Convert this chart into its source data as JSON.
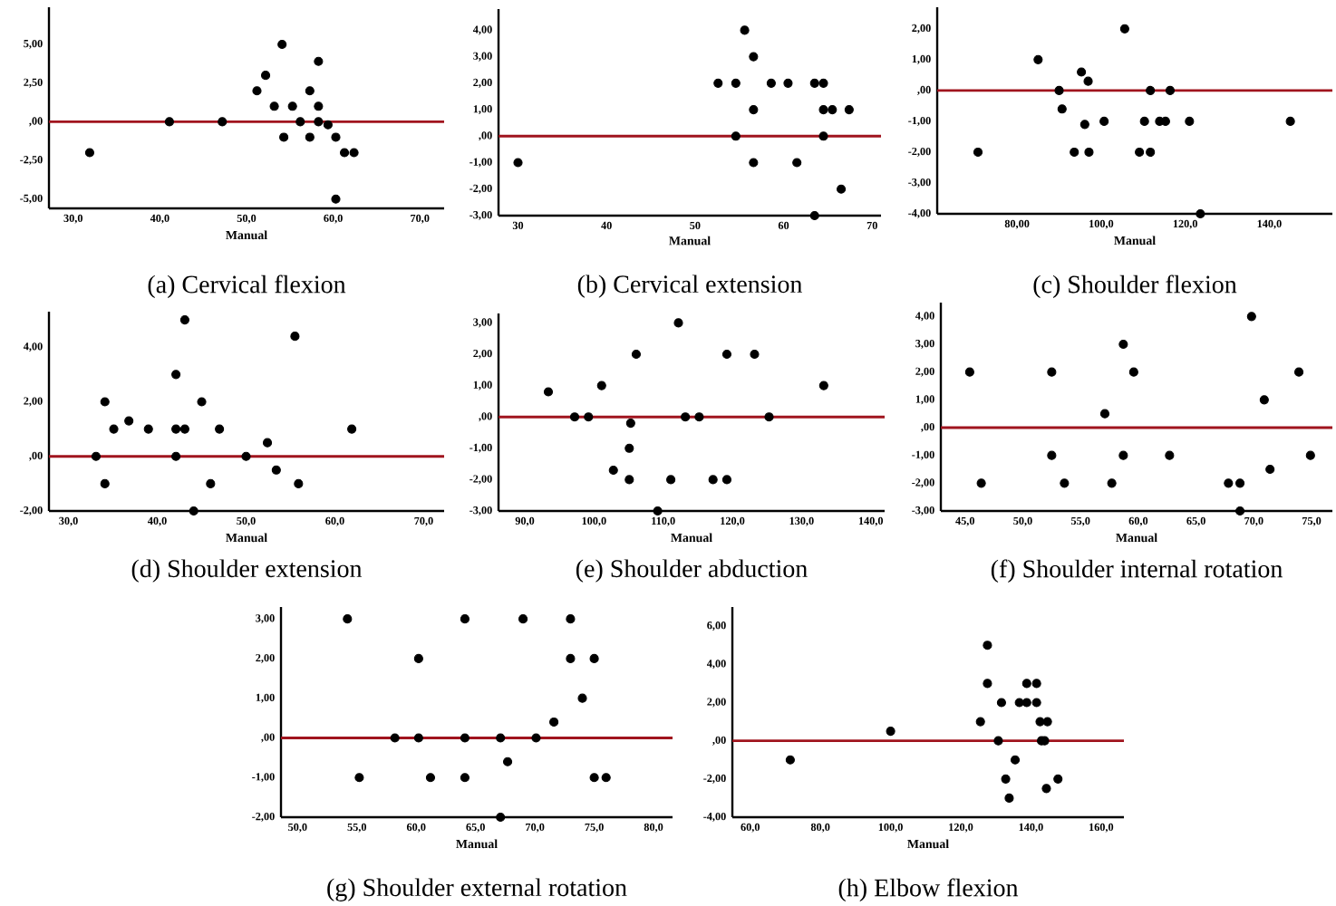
{
  "chart_data": [
    {
      "type": "scatter",
      "title": "(a) Cervical flexion",
      "xlabel": "Manual",
      "marker": "circle",
      "color": "#000000",
      "x": [
        31.9,
        41.1,
        47.2,
        51.2,
        52.2,
        53.2,
        54.1,
        54.3,
        55.3,
        56.2,
        57.3,
        57.3,
        58.3,
        58.3,
        58.3,
        59.4,
        60.3,
        60.3,
        61.3,
        62.4
      ],
      "values": [
        -2.0,
        0,
        0,
        2.0,
        3.0,
        1.0,
        5.0,
        -1.0,
        1.0,
        0,
        2.0,
        -1.0,
        3.9,
        1.0,
        0,
        -0.2,
        -1.0,
        -5.0,
        -2.0,
        -2.0
      ],
      "xlim": [
        27.2,
        72.8
      ],
      "ylim": [
        -5.6,
        7.4
      ],
      "xticks": [
        {
          "value": 30,
          "label": "30,0"
        },
        {
          "value": 40,
          "label": "40,0"
        },
        {
          "value": 50,
          "label": "50,0"
        },
        {
          "value": 60,
          "label": "60,0"
        },
        {
          "value": 70,
          "label": "70,0"
        }
      ],
      "yticks": [
        {
          "value": 5,
          "label": "5,00"
        },
        {
          "value": 2.5,
          "label": "2,50"
        },
        {
          "value": 0,
          "label": ",00"
        },
        {
          "value": -2.5,
          "label": "-2,50"
        },
        {
          "value": -5,
          "label": "-5,00"
        }
      ],
      "ref_lines": [
        {
          "axis": "y",
          "value": 0,
          "color": "#a0141e"
        }
      ]
    },
    {
      "type": "scatter",
      "title": "(b) Cervical extension",
      "xlabel": "Manual",
      "marker": "circle",
      "color": "#000000",
      "x": [
        30,
        52.6,
        54.6,
        54.6,
        55.6,
        56.6,
        56.6,
        56.6,
        58.6,
        60.5,
        61.5,
        63.5,
        63.5,
        64.5,
        64.5,
        64.5,
        65.5,
        66.5,
        67.4
      ],
      "values": [
        -1,
        2,
        2,
        0,
        4,
        3,
        1,
        -1,
        2,
        2,
        -1,
        2,
        -3,
        2,
        1,
        0,
        1,
        -2,
        1
      ],
      "xlim": [
        27.8,
        71
      ],
      "ylim": [
        -3,
        4.8
      ],
      "xticks": [
        30,
        40,
        50,
        60,
        70
      ],
      "yticks": [
        {
          "value": 4,
          "label": "4,00"
        },
        {
          "value": 3,
          "label": "3,00"
        },
        {
          "value": 2,
          "label": "2,00"
        },
        {
          "value": 1,
          "label": "1,00"
        },
        {
          "value": 0,
          "label": ",00"
        },
        {
          "value": -1,
          "label": "-1,00"
        },
        {
          "value": -2,
          "label": "-2,00"
        },
        {
          "value": -3,
          "label": "-3,00"
        }
      ],
      "ref_lines": [
        {
          "axis": "y",
          "value": 0,
          "color": "#a0141e"
        }
      ]
    },
    {
      "type": "scatter",
      "title": "(c) Shoulder flexion",
      "xlabel": "Manual",
      "marker": "circle",
      "color": "#000000",
      "x": [
        70.7,
        85.0,
        90.0,
        90.7,
        93.6,
        95.3,
        96.1,
        96.9,
        97.1,
        100.7,
        105.6,
        109.1,
        110.3,
        111.7,
        111.7,
        113.9,
        115.3,
        116.4,
        121.0,
        123.6,
        145
      ],
      "values": [
        -2,
        1,
        0,
        -0.6,
        -2,
        0.6,
        -1.1,
        0.3,
        -2,
        -1,
        2,
        -2,
        -1,
        0,
        -2,
        -1,
        -1,
        0,
        -1,
        -4,
        -1
      ],
      "xlim": [
        61,
        155
      ],
      "ylim": [
        -4,
        2.7
      ],
      "xticks": [
        {
          "value": 80,
          "label": "80,00"
        },
        {
          "value": 100,
          "label": "100,0"
        },
        {
          "value": 120,
          "label": "120,0"
        },
        {
          "value": 140,
          "label": "140,0"
        }
      ],
      "yticks": [
        {
          "value": 2,
          "label": "2,00"
        },
        {
          "value": 1,
          "label": "1,00"
        },
        {
          "value": 0,
          "label": ",00"
        },
        {
          "value": -1,
          "label": "-1,00"
        },
        {
          "value": -2,
          "label": "-2,00"
        },
        {
          "value": -3,
          "label": "-3,00"
        },
        {
          "value": -4,
          "label": "-4,00"
        }
      ],
      "ref_lines": [
        {
          "axis": "y",
          "value": 0,
          "color": "#a0141e"
        }
      ]
    },
    {
      "type": "scatter",
      "title": "(d) Shoulder extension",
      "xlabel": "Manual",
      "marker": "circle",
      "color": "#000000",
      "x": [
        33.1,
        34.1,
        34.1,
        35.1,
        36.8,
        39.0,
        42.1,
        42.1,
        42.1,
        43.1,
        43.1,
        44.1,
        45.0,
        46.0,
        47.0,
        50.0,
        52.4,
        53.4,
        55.5,
        55.9,
        61.9
      ],
      "values": [
        0,
        2,
        -1,
        1,
        1.3,
        1,
        3,
        1,
        0,
        5,
        1,
        -2,
        2,
        -1,
        1,
        0,
        0.5,
        -0.5,
        4.4,
        -1,
        1
      ],
      "xlim": [
        27.8,
        72.3
      ],
      "ylim": [
        -2,
        5.3
      ],
      "xticks": [
        {
          "value": 30,
          "label": "30,0"
        },
        {
          "value": 40,
          "label": "40,0"
        },
        {
          "value": 50,
          "label": "50,0"
        },
        {
          "value": 60,
          "label": "60,0"
        },
        {
          "value": 70,
          "label": "70,0"
        }
      ],
      "yticks": [
        {
          "value": 4,
          "label": "4,00"
        },
        {
          "value": 2,
          "label": "2,00"
        },
        {
          "value": 0,
          "label": ",00"
        },
        {
          "value": -2,
          "label": "-2,00"
        }
      ],
      "ref_lines": [
        {
          "axis": "y",
          "value": 0,
          "color": "#a0141e"
        }
      ]
    },
    {
      "type": "scatter",
      "title": "(e) Shoulder abduction",
      "xlabel": "Manual",
      "marker": "circle",
      "color": "#000000",
      "x": [
        93.4,
        97.2,
        99.2,
        101.1,
        102.8,
        105.3,
        105.1,
        105.1,
        106.1,
        109.2,
        111.1,
        112.2,
        113.2,
        115.2,
        117.2,
        119.2,
        119.2,
        123.2,
        125.3,
        133.2
      ],
      "values": [
        0.8,
        0,
        0,
        1,
        -1.7,
        -0.2,
        -1,
        -2,
        2,
        -3,
        -2,
        3,
        0,
        0,
        -2,
        2,
        -2,
        2,
        0,
        1
      ],
      "xlim": [
        86.2,
        142
      ],
      "ylim": [
        -3,
        3.3
      ],
      "xticks": [
        {
          "value": 90,
          "label": "90,0"
        },
        {
          "value": 100,
          "label": "100,0"
        },
        {
          "value": 110,
          "label": "110,0"
        },
        {
          "value": 120,
          "label": "120,0"
        },
        {
          "value": 130,
          "label": "130,0"
        },
        {
          "value": 140,
          "label": "140,0"
        }
      ],
      "yticks": [
        {
          "value": 3,
          "label": "3,00"
        },
        {
          "value": 2,
          "label": "2,00"
        },
        {
          "value": 1,
          "label": "1,00"
        },
        {
          "value": 0,
          "label": ",00"
        },
        {
          "value": -1,
          "label": "-1,00"
        },
        {
          "value": -2,
          "label": "-2,00"
        },
        {
          "value": -3,
          "label": "-3,00"
        }
      ],
      "ref_lines": [
        {
          "axis": "y",
          "value": 0,
          "color": "#a0141e"
        }
      ]
    },
    {
      "type": "scatter",
      "title": "(f) Shoulder internal rotation",
      "xlabel": "Manual",
      "marker": "circle",
      "color": "#000000",
      "x": [
        45.4,
        46.4,
        52.5,
        52.5,
        53.6,
        57.1,
        57.7,
        58.7,
        58.7,
        59.6,
        62.7,
        67.8,
        68.8,
        68.8,
        69.8,
        70.9,
        71.4,
        73.9,
        74.9
      ],
      "values": [
        2,
        -2,
        2,
        -1,
        -2,
        0.5,
        -2,
        3,
        -1,
        2,
        -1,
        -2,
        -2,
        -3,
        4,
        1,
        -1.5,
        2,
        -1
      ],
      "xlim": [
        42.9,
        76.8
      ],
      "ylim": [
        -3,
        4.5
      ],
      "xticks": [
        {
          "value": 45,
          "label": "45,0"
        },
        {
          "value": 50,
          "label": "50,0"
        },
        {
          "value": 55,
          "label": "55,0"
        },
        {
          "value": 60,
          "label": "60,0"
        },
        {
          "value": 65,
          "label": "65,0"
        },
        {
          "value": 70,
          "label": "70,0"
        },
        {
          "value": 75,
          "label": "75,0"
        }
      ],
      "yticks": [
        {
          "value": 4,
          "label": "4,00"
        },
        {
          "value": 3,
          "label": "3,00"
        },
        {
          "value": 2,
          "label": "2,00"
        },
        {
          "value": 1,
          "label": "1,00"
        },
        {
          "value": 0,
          "label": ",00"
        },
        {
          "value": -1,
          "label": "-1,00"
        },
        {
          "value": -2,
          "label": "-2,00"
        },
        {
          "value": -3,
          "label": "-3,00"
        }
      ],
      "ref_lines": [
        {
          "axis": "y",
          "value": 0,
          "color": "#a0141e"
        }
      ]
    },
    {
      "type": "scatter",
      "title": "(g) Shoulder external rotation",
      "xlabel": "Manual",
      "marker": "circle",
      "color": "#000000",
      "x": [
        54.2,
        55.2,
        58.2,
        60.2,
        60.2,
        61.2,
        64.1,
        64.1,
        64.1,
        67.1,
        67.1,
        67.7,
        69.0,
        70.1,
        71.6,
        73.0,
        73.0,
        74.0,
        75.0,
        75.0,
        76.0
      ],
      "values": [
        3,
        -1,
        0,
        2,
        0,
        -1,
        3,
        0,
        -1,
        0,
        -2,
        -0.6,
        3,
        0,
        0.4,
        3,
        2,
        1,
        2,
        -1,
        -1
      ],
      "xlim": [
        48.6,
        81.6
      ],
      "ylim": [
        -2,
        3.3
      ],
      "xticks": [
        {
          "value": 50,
          "label": "50,0"
        },
        {
          "value": 55,
          "label": "55,0"
        },
        {
          "value": 60,
          "label": "60,0"
        },
        {
          "value": 65,
          "label": "65,0"
        },
        {
          "value": 70,
          "label": "70,0"
        },
        {
          "value": 75,
          "label": "75,0"
        },
        {
          "value": 80,
          "label": "80,0"
        }
      ],
      "yticks": [
        {
          "value": 3,
          "label": "3,00"
        },
        {
          "value": 2,
          "label": "2,00"
        },
        {
          "value": 1,
          "label": "1,00"
        },
        {
          "value": 0,
          "label": ",00"
        },
        {
          "value": -1,
          "label": "-1,00"
        },
        {
          "value": -2,
          "label": "-2,00"
        }
      ],
      "ref_lines": [
        {
          "axis": "y",
          "value": 0,
          "color": "#a0141e"
        }
      ]
    },
    {
      "type": "scatter",
      "title": "(h) Elbow flexion",
      "xlabel": "Manual",
      "marker": "circle",
      "color": "#000000",
      "x": [
        71.4,
        100.0,
        125.6,
        127.6,
        127.6,
        130.7,
        131.6,
        132.8,
        133.8,
        135.5,
        136.7,
        138.8,
        138.8,
        141.6,
        141.6,
        142.6,
        143.0,
        143.9,
        144.7,
        144.4,
        147.7
      ],
      "values": [
        -1,
        0.5,
        1,
        5,
        3,
        0,
        2,
        -2,
        -3,
        -1,
        2,
        3,
        2,
        3,
        2,
        1,
        0,
        0,
        1,
        -2.5,
        -2
      ],
      "xlim": [
        54.9,
        166.5
      ],
      "ylim": [
        -4,
        7
      ],
      "xticks": [
        {
          "value": 60,
          "label": "60,0"
        },
        {
          "value": 80,
          "label": "80,0"
        },
        {
          "value": 100,
          "label": "100,0"
        },
        {
          "value": 120,
          "label": "120,0"
        },
        {
          "value": 140,
          "label": "140,0"
        },
        {
          "value": 160,
          "label": "160,0"
        }
      ],
      "yticks": [
        {
          "value": 6,
          "label": "6,00"
        },
        {
          "value": 4,
          "label": "4,00"
        },
        {
          "value": 2,
          "label": "2,00"
        },
        {
          "value": 0,
          "label": ",00"
        },
        {
          "value": -2,
          "label": "-2,00"
        },
        {
          "value": -4,
          "label": "-4,00"
        }
      ],
      "ref_lines": [
        {
          "axis": "y",
          "value": 0,
          "color": "#a0141e"
        }
      ]
    }
  ]
}
